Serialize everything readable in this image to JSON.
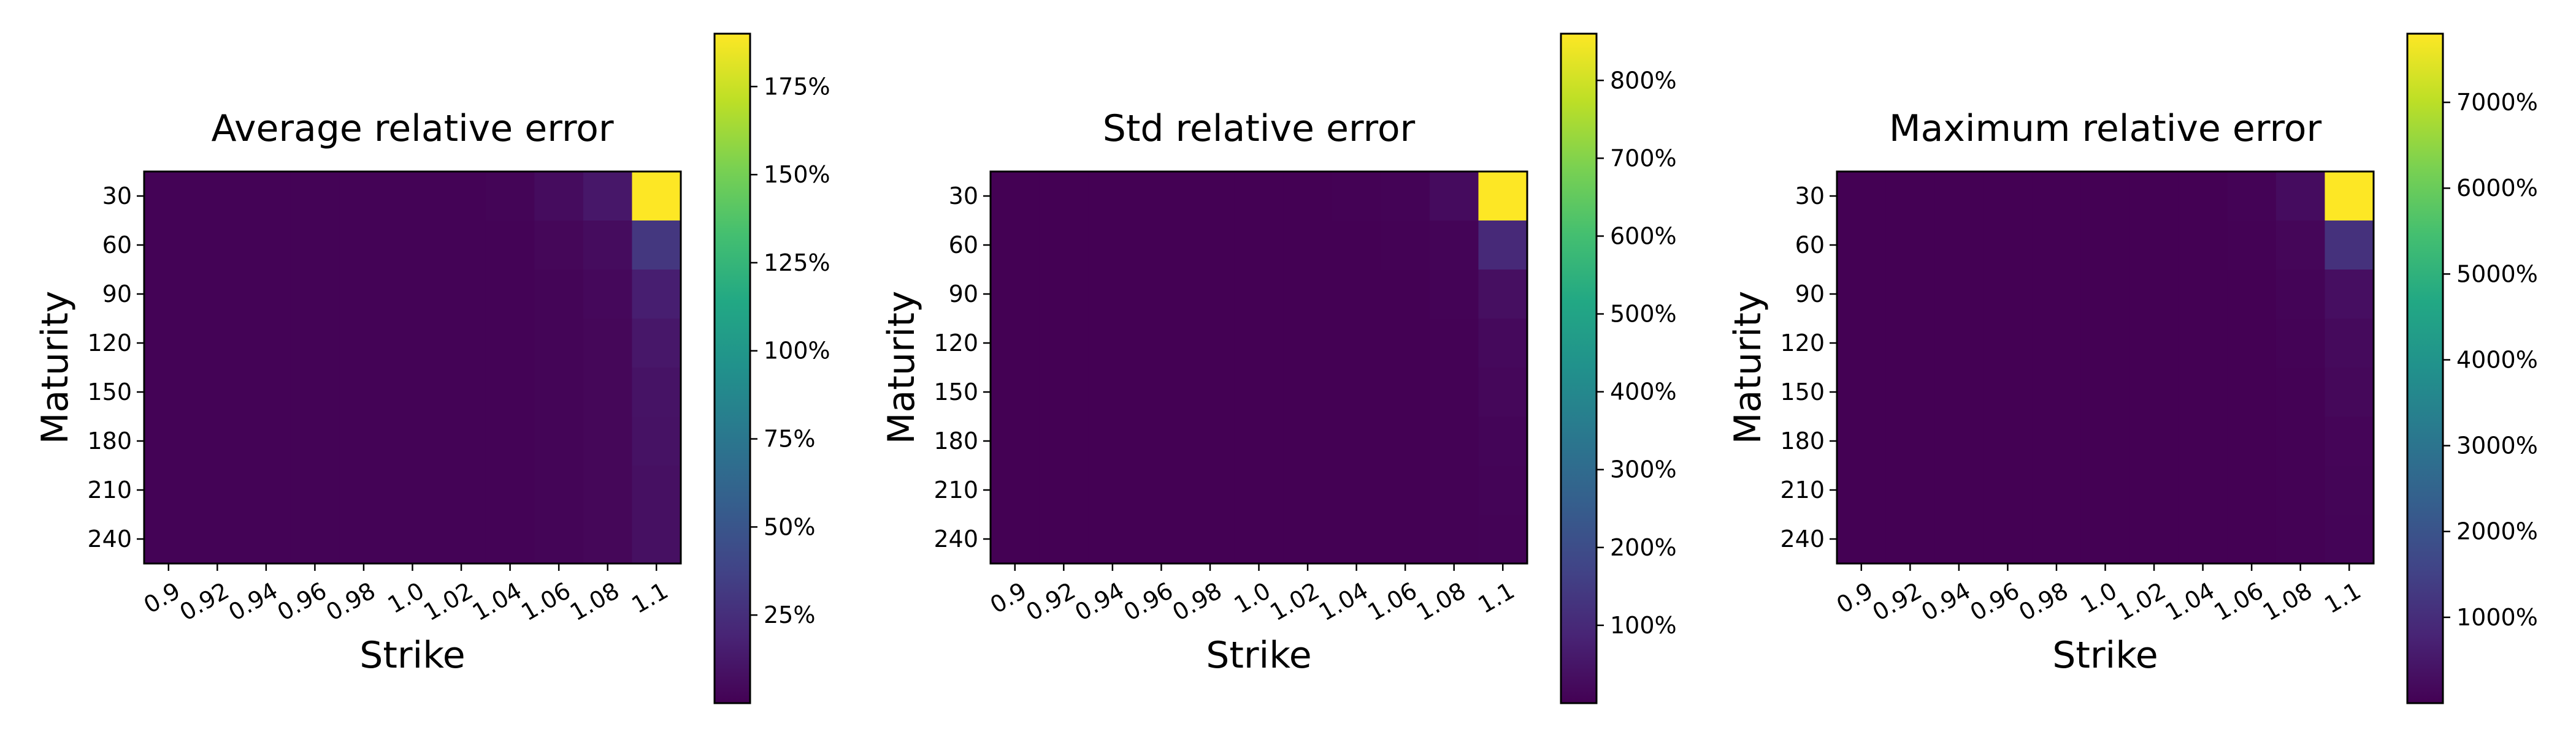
{
  "chart_data": [
    {
      "type": "heatmap",
      "title": "Average relative error",
      "xlabel": "Strike",
      "ylabel": "Maturity",
      "x_categories": [
        "0.9",
        "0.92",
        "0.94",
        "0.96",
        "0.98",
        "1.0",
        "1.02",
        "1.04",
        "1.06",
        "1.08",
        "1.1"
      ],
      "y_categories": [
        "30",
        "60",
        "90",
        "120",
        "150",
        "180",
        "210",
        "240"
      ],
      "colormap": "viridis",
      "colorbar": {
        "vmin": 0,
        "vmax": 190,
        "ticks": [
          25,
          50,
          75,
          100,
          125,
          150,
          175
        ],
        "tick_labels": [
          "25%",
          "50%",
          "75%",
          "100%",
          "125%",
          "150%",
          "175%"
        ]
      },
      "z": [
        [
          1,
          1,
          1,
          1,
          1,
          1,
          1,
          2,
          6,
          12,
          190
        ],
        [
          1,
          1,
          1,
          1,
          1,
          1,
          1,
          1,
          3,
          6,
          30
        ],
        [
          1,
          1,
          1,
          1,
          1,
          1,
          1,
          1,
          2,
          4,
          16
        ],
        [
          1,
          1,
          1,
          1,
          1,
          1,
          1,
          1,
          2,
          3,
          12
        ],
        [
          1,
          1,
          1,
          1,
          1,
          1,
          1,
          1,
          2,
          3,
          10
        ],
        [
          1,
          1,
          1,
          1,
          1,
          1,
          1,
          1,
          2,
          3,
          9
        ],
        [
          1,
          1,
          1,
          1,
          1,
          1,
          1,
          1,
          2,
          3,
          8
        ],
        [
          1,
          1,
          1,
          1,
          1,
          1,
          1,
          1,
          2,
          3,
          8
        ]
      ]
    },
    {
      "type": "heatmap",
      "title": "Std relative error",
      "xlabel": "Strike",
      "ylabel": "Maturity",
      "x_categories": [
        "0.9",
        "0.92",
        "0.94",
        "0.96",
        "0.98",
        "1.0",
        "1.02",
        "1.04",
        "1.06",
        "1.08",
        "1.1"
      ],
      "y_categories": [
        "30",
        "60",
        "90",
        "120",
        "150",
        "180",
        "210",
        "240"
      ],
      "colormap": "viridis",
      "colorbar": {
        "vmin": 0,
        "vmax": 860,
        "ticks": [
          100,
          200,
          300,
          400,
          500,
          600,
          700,
          800
        ],
        "tick_labels": [
          "100%",
          "200%",
          "300%",
          "400%",
          "500%",
          "600%",
          "700%",
          "800%"
        ]
      },
      "z": [
        [
          1,
          1,
          1,
          1,
          1,
          1,
          1,
          2,
          4,
          25,
          860
        ],
        [
          1,
          1,
          1,
          1,
          1,
          1,
          1,
          1,
          2,
          8,
          100
        ],
        [
          1,
          1,
          1,
          1,
          1,
          1,
          1,
          1,
          1,
          4,
          35
        ],
        [
          1,
          1,
          1,
          1,
          1,
          1,
          1,
          1,
          1,
          3,
          20
        ],
        [
          1,
          1,
          1,
          1,
          1,
          1,
          1,
          1,
          1,
          2,
          15
        ],
        [
          1,
          1,
          1,
          1,
          1,
          1,
          1,
          1,
          1,
          2,
          10
        ],
        [
          1,
          1,
          1,
          1,
          1,
          1,
          1,
          1,
          1,
          2,
          8
        ],
        [
          1,
          1,
          1,
          1,
          1,
          1,
          1,
          1,
          1,
          2,
          6
        ]
      ]
    },
    {
      "type": "heatmap",
      "title": "Maximum relative error",
      "xlabel": "Strike",
      "ylabel": "Maturity",
      "x_categories": [
        "0.9",
        "0.92",
        "0.94",
        "0.96",
        "0.98",
        "1.0",
        "1.02",
        "1.04",
        "1.06",
        "1.08",
        "1.1"
      ],
      "y_categories": [
        "30",
        "60",
        "90",
        "120",
        "150",
        "180",
        "210",
        "240"
      ],
      "colormap": "viridis",
      "colorbar": {
        "vmin": 0,
        "vmax": 7800,
        "ticks": [
          1000,
          2000,
          3000,
          4000,
          5000,
          6000,
          7000
        ],
        "tick_labels": [
          "1000%",
          "2000%",
          "3000%",
          "4000%",
          "5000%",
          "6000%",
          "7000%"
        ]
      },
      "z": [
        [
          5,
          5,
          5,
          5,
          5,
          5,
          5,
          10,
          40,
          250,
          7800
        ],
        [
          5,
          5,
          5,
          5,
          5,
          5,
          5,
          8,
          20,
          120,
          1100
        ],
        [
          5,
          5,
          5,
          5,
          5,
          5,
          5,
          5,
          10,
          60,
          300
        ],
        [
          5,
          5,
          5,
          5,
          5,
          5,
          5,
          5,
          8,
          40,
          200
        ],
        [
          5,
          5,
          5,
          5,
          5,
          5,
          5,
          5,
          6,
          30,
          150
        ],
        [
          5,
          5,
          5,
          5,
          5,
          5,
          5,
          5,
          5,
          25,
          100
        ],
        [
          5,
          5,
          5,
          5,
          5,
          5,
          5,
          5,
          5,
          20,
          80
        ],
        [
          5,
          5,
          5,
          5,
          5,
          5,
          5,
          5,
          5,
          15,
          60
        ]
      ]
    }
  ]
}
